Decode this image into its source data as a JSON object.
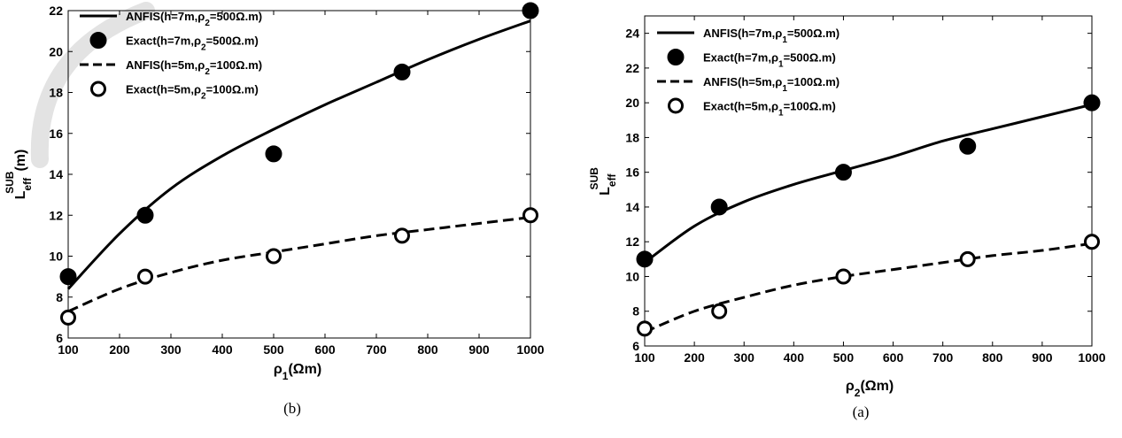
{
  "chart_data": [
    {
      "type": "line",
      "caption": "(b)",
      "xlim": [
        100,
        1000
      ],
      "ylim": [
        6,
        22
      ],
      "xticks": [
        100,
        200,
        300,
        400,
        500,
        600,
        700,
        800,
        900,
        1000
      ],
      "yticks": [
        6,
        8,
        10,
        12,
        14,
        16,
        18,
        20,
        22
      ],
      "xlabel": {
        "base": "ρ",
        "sub": "1",
        "rest": "(Ωm)"
      },
      "ylabel": {
        "base": "L",
        "sup": "SUB",
        "sub": "eff",
        "rest": "(m)"
      },
      "legend_position": "top-left",
      "series": [
        {
          "name": {
            "pre": "ANFIS(h=7m,ρ",
            "sub": "2",
            "post": "=500Ω.m)"
          },
          "kind": "line",
          "dash": "solid",
          "x": [
            100,
            200,
            300,
            400,
            500,
            600,
            700,
            800,
            900,
            1000
          ],
          "values": [
            8.4,
            11.1,
            13.3,
            14.9,
            16.2,
            17.4,
            18.5,
            19.6,
            20.6,
            21.5
          ]
        },
        {
          "name": {
            "pre": "Exact(h=7m,ρ",
            "sub": "2",
            "post": "=500Ω.m)"
          },
          "kind": "marker",
          "fill": "filled",
          "x": [
            100,
            250,
            500,
            750,
            1000
          ],
          "values": [
            9,
            12,
            15,
            19,
            22
          ]
        },
        {
          "name": {
            "pre": "ANFIS(h=5m,ρ",
            "sub": "2",
            "post": "=100Ω.m)"
          },
          "kind": "line",
          "dash": "dashed",
          "x": [
            100,
            200,
            300,
            400,
            500,
            600,
            700,
            800,
            900,
            1000
          ],
          "values": [
            7.3,
            8.4,
            9.2,
            9.8,
            10.2,
            10.6,
            11.0,
            11.3,
            11.6,
            11.9
          ]
        },
        {
          "name": {
            "pre": "Exact(h=5m,ρ",
            "sub": "2",
            "post": "=100Ω.m)"
          },
          "kind": "marker",
          "fill": "open",
          "x": [
            100,
            250,
            500,
            750,
            1000
          ],
          "values": [
            7,
            9,
            10,
            11,
            12
          ]
        }
      ]
    },
    {
      "type": "line",
      "caption": "(a)",
      "xlim": [
        100,
        1000
      ],
      "ylim": [
        6,
        25
      ],
      "xticks": [
        100,
        200,
        300,
        400,
        500,
        600,
        700,
        800,
        900,
        1000
      ],
      "yticks": [
        6,
        8,
        10,
        12,
        14,
        16,
        18,
        20,
        22,
        24
      ],
      "xlabel": {
        "base": "ρ",
        "sub": "2",
        "rest": "(Ωm)"
      },
      "ylabel": {
        "base": "L",
        "sup": "SUB",
        "sub": "eff",
        "rest": ""
      },
      "legend_position": "top-left",
      "series": [
        {
          "name": {
            "pre": "ANFIS(h=7m,ρ",
            "sub": "1",
            "post": "=500Ω.m)"
          },
          "kind": "line",
          "dash": "solid",
          "x": [
            100,
            200,
            300,
            400,
            500,
            600,
            700,
            800,
            900,
            1000
          ],
          "values": [
            10.8,
            12.9,
            14.3,
            15.3,
            16.1,
            16.9,
            17.8,
            18.5,
            19.2,
            19.9
          ]
        },
        {
          "name": {
            "pre": "Exact(h=7m,ρ",
            "sub": "1",
            "post": "=500Ω.m)"
          },
          "kind": "marker",
          "fill": "filled",
          "x": [
            100,
            250,
            500,
            750,
            1000
          ],
          "values": [
            11,
            14,
            16,
            17.5,
            20
          ]
        },
        {
          "name": {
            "pre": "ANFIS(h=5m,ρ",
            "sub": "1",
            "post": "=100Ω.m)"
          },
          "kind": "line",
          "dash": "dashed",
          "x": [
            100,
            200,
            300,
            400,
            500,
            600,
            700,
            800,
            900,
            1000
          ],
          "values": [
            6.8,
            8.0,
            8.8,
            9.5,
            10.0,
            10.4,
            10.8,
            11.2,
            11.5,
            11.9
          ]
        },
        {
          "name": {
            "pre": "Exact(h=5m,ρ",
            "sub": "1",
            "post": "=100Ω.m)"
          },
          "kind": "marker",
          "fill": "open",
          "x": [
            100,
            250,
            500,
            750,
            1000
          ],
          "values": [
            7,
            8,
            10,
            11,
            12
          ]
        }
      ]
    }
  ]
}
